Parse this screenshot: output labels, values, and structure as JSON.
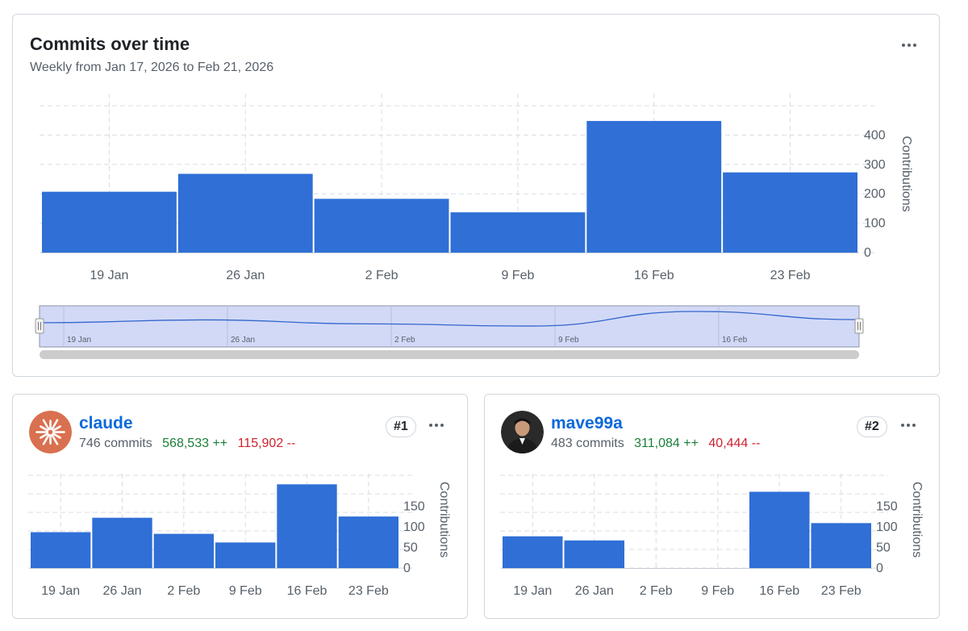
{
  "main": {
    "title": "Commits over time",
    "subtitle": "Weekly from Jan 17, 2026 to Feb 21, 2026",
    "menu_icon": "kebab-horizontal-icon"
  },
  "colors": {
    "bar": "#2f6fd6",
    "grid": "#d8dde3",
    "navigator_fill": "#d2d9f7",
    "navigator_line": "#3366cc",
    "scrollbar": "#cccccc",
    "additions": "#1a7f37",
    "deletions": "#cf222e",
    "link": "#0969da"
  },
  "chart_data": [
    {
      "type": "bar",
      "title": "Commits over time",
      "categories": [
        "19 Jan",
        "26 Jan",
        "2 Feb",
        "9 Feb",
        "16 Feb",
        "23 Feb"
      ],
      "values": [
        207,
        268,
        183,
        137,
        448,
        273
      ],
      "ylabel": "Contributions",
      "yticks": [
        0,
        100,
        200,
        300,
        400
      ],
      "ylim": [
        0,
        500
      ],
      "navigator_labels": [
        "19 Jan",
        "26 Jan",
        "2 Feb",
        "9 Feb",
        "16 Feb"
      ]
    },
    {
      "type": "bar",
      "title": "claude",
      "categories": [
        "19 Jan",
        "26 Jan",
        "2 Feb",
        "9 Feb",
        "16 Feb",
        "23 Feb"
      ],
      "values": [
        87,
        122,
        83,
        62,
        203,
        125
      ],
      "ylabel": "Contributions",
      "yticks": [
        0,
        50,
        100,
        150
      ],
      "ylim": [
        0,
        225
      ]
    },
    {
      "type": "bar",
      "title": "mave99a",
      "categories": [
        "19 Jan",
        "26 Jan",
        "2 Feb",
        "9 Feb",
        "16 Feb",
        "23 Feb"
      ],
      "values": [
        77,
        67,
        0,
        0,
        185,
        109
      ],
      "ylabel": "Contributions",
      "yticks": [
        0,
        50,
        100,
        150
      ],
      "ylim": [
        0,
        225
      ]
    }
  ],
  "contributors": [
    {
      "username": "claude",
      "commits": "746 commits",
      "additions": "568,533 ++",
      "deletions": "115,902 --",
      "rank": "#1",
      "avatar_icon": "claude-sunburst-icon",
      "avatar_color": "#d9704f"
    },
    {
      "username": "mave99a",
      "commits": "483 commits",
      "additions": "311,084 ++",
      "deletions": "40,444 --",
      "rank": "#2",
      "avatar_icon": "user-photo-icon",
      "avatar_color": "#2a2a2a"
    }
  ]
}
